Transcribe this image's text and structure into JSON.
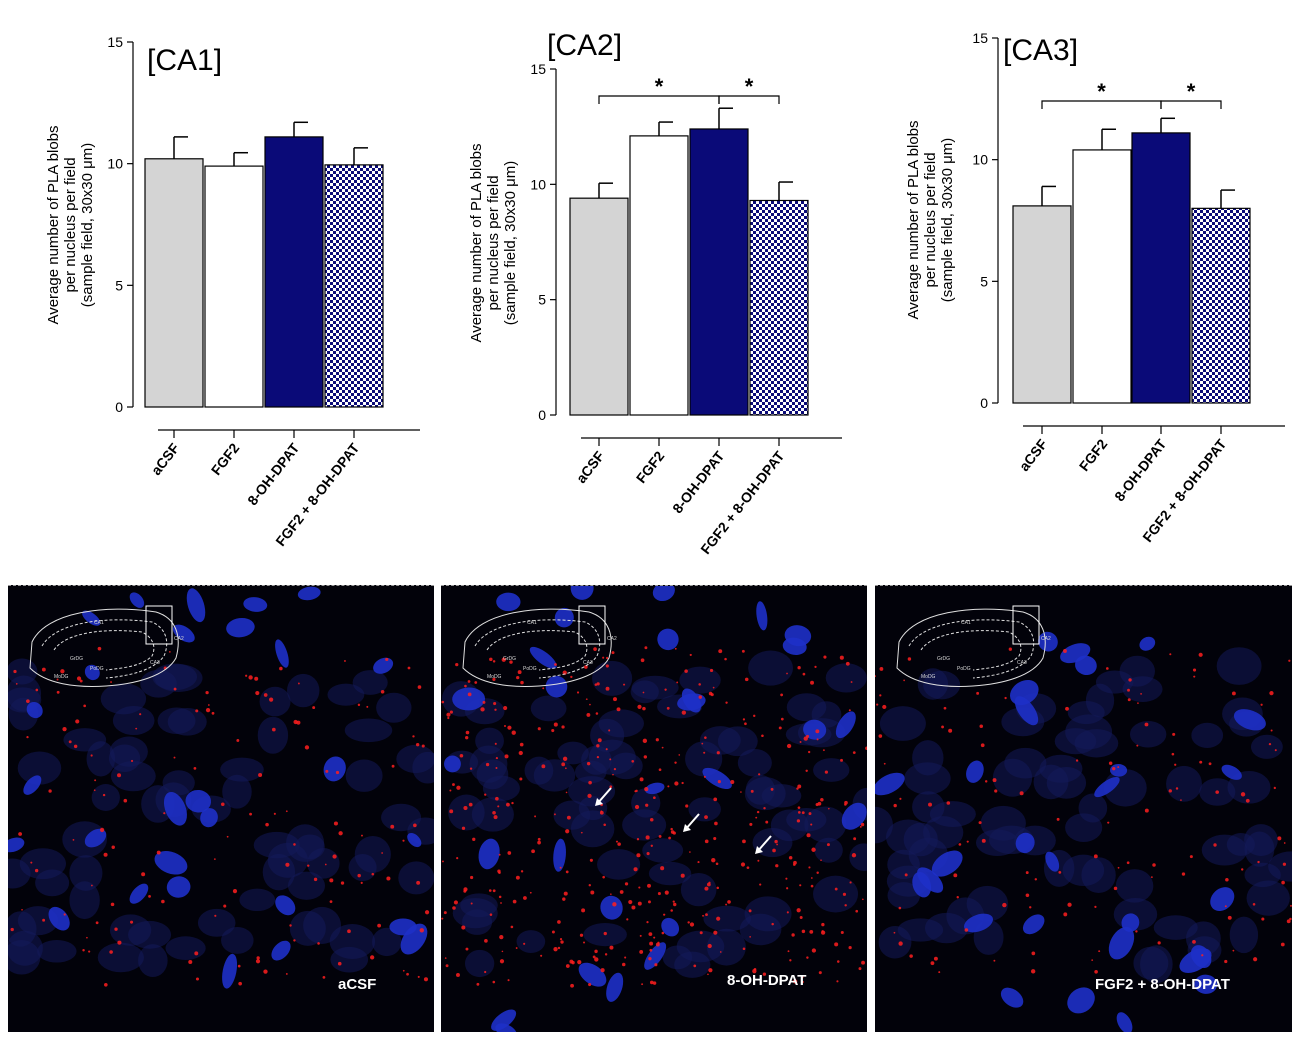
{
  "colors": {
    "acsf": "#d4d4d4",
    "fgf2": "#ffffff",
    "dpat": "#0a0a78",
    "combo": "#0a0a78",
    "nucleus": "#1e30c8",
    "pla_dot": "#ff1e1e",
    "background": "#02020a"
  },
  "chart_data": [
    {
      "type": "bar",
      "title": "[CA1]",
      "ylabel": "Average number of PLA blobs\nper nucleus per field\n(sample field, 30x30 μm)",
      "categories": [
        "aCSF",
        "FGF2",
        "8-OH-DPAT",
        "FGF2 + 8-OH-DPAT"
      ],
      "values": [
        10.2,
        9.9,
        11.1,
        9.95
      ],
      "errors": [
        0.9,
        0.55,
        0.6,
        0.7
      ],
      "fills": [
        "solid-grey",
        "solid-white",
        "solid-navy",
        "checker-navy"
      ],
      "ylim": [
        0,
        15
      ],
      "yticks": [
        "0",
        "5",
        "10",
        "15"
      ],
      "significance": []
    },
    {
      "type": "bar",
      "title": "[CA2]",
      "ylabel": "Average number of PLA blobs\nper nucleus per field\n(sample field, 30x30 μm)",
      "categories": [
        "aCSF",
        "FGF2",
        "8-OH-DPAT",
        "FGF2 + 8-OH-DPAT"
      ],
      "values": [
        9.4,
        12.1,
        12.4,
        9.3
      ],
      "errors": [
        0.65,
        0.6,
        0.9,
        0.8
      ],
      "fills": [
        "solid-grey",
        "solid-white",
        "solid-navy",
        "checker-navy"
      ],
      "ylim": [
        0,
        15
      ],
      "yticks": [
        "0",
        "5",
        "10",
        "15"
      ],
      "significance": [
        {
          "from": 0,
          "to": 2,
          "label": "*"
        },
        {
          "from": 2,
          "to": 3,
          "label": "*"
        }
      ]
    },
    {
      "type": "bar",
      "title": "[CA3]",
      "ylabel": "Average number of PLA blobs\nper nucleus per field\n(sample field, 30x30 μm)",
      "categories": [
        "aCSF",
        "FGF2",
        "8-OH-DPAT",
        "FGF2 + 8-OH-DPAT"
      ],
      "values": [
        8.1,
        10.4,
        11.1,
        8.0
      ],
      "errors": [
        0.8,
        0.85,
        0.6,
        0.75
      ],
      "fills": [
        "solid-grey",
        "solid-white",
        "solid-navy",
        "checker-navy"
      ],
      "ylim": [
        0,
        15
      ],
      "yticks": [
        "0",
        "5",
        "10",
        "15"
      ],
      "significance": [
        {
          "from": 0,
          "to": 2,
          "label": "*"
        },
        {
          "from": 2,
          "to": 3,
          "label": "*"
        }
      ]
    }
  ],
  "micrographs": [
    {
      "label": "aCSF",
      "dot_density": 0.35,
      "arrows": 0
    },
    {
      "label": "8-OH-DPAT",
      "dot_density": 1.0,
      "arrows": 3
    },
    {
      "label": "FGF2 + 8-OH-DPAT",
      "dot_density": 0.3,
      "arrows": 0
    }
  ],
  "inset_labels": {
    "ca1": "CA1",
    "ca2": "CA2",
    "ca3": "CA3",
    "dg": "DG",
    "gcl": "GrDG",
    "hil": "PoDG",
    "mol": "MoDG"
  }
}
